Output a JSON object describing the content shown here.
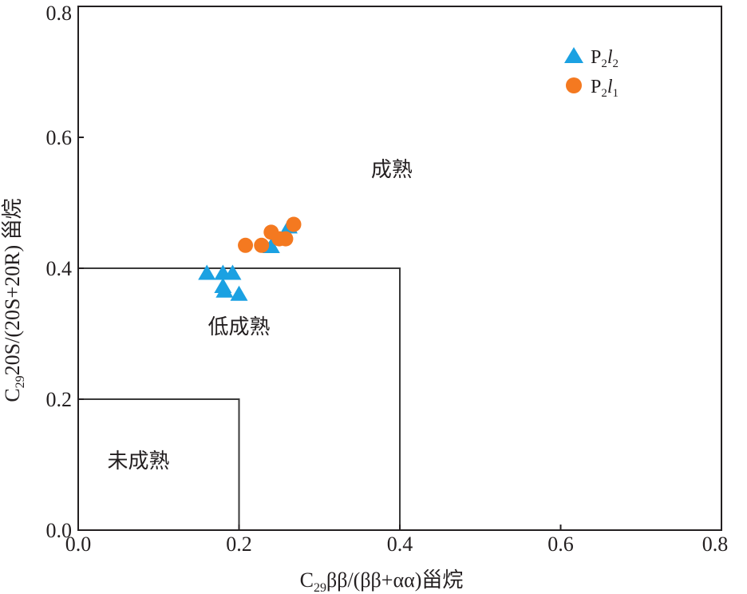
{
  "chart_data": {
    "type": "scatter",
    "xlabel": {
      "c": "C",
      "sub": "29",
      "rest": "ββ/(ββ+αα)甾烷"
    },
    "ylabel": {
      "c": "C",
      "sub": "29",
      "rest": "20S/(20S+20R) 甾烷"
    },
    "xlim": [
      0.0,
      0.8
    ],
    "ylim": [
      0.0,
      0.8
    ],
    "x_ticks": [
      "0.0",
      "0.2",
      "0.4",
      "0.6",
      "0.8"
    ],
    "y_ticks": [
      "0.0",
      "0.2",
      "0.4",
      "0.6",
      "0.8"
    ],
    "grid": false,
    "legend_position": "top-right",
    "regions": [
      {
        "label": "未成熟",
        "x_max": 0.2,
        "y_max": 0.2,
        "label_x": 0.075,
        "label_y": 0.095
      },
      {
        "label": "低成熟",
        "x_max": 0.4,
        "y_max": 0.4,
        "label_x": 0.2,
        "label_y": 0.3
      },
      {
        "label": "成熟",
        "x_max": 0.8,
        "y_max": 0.8,
        "label_x": 0.39,
        "label_y": 0.54
      }
    ],
    "series": [
      {
        "name": {
          "p": "P",
          "sub1": "2",
          "l": "l",
          "sub2": "2"
        },
        "marker": "triangle",
        "color": "#1ba1e2",
        "points": [
          [
            0.16,
            0.392
          ],
          [
            0.18,
            0.392
          ],
          [
            0.192,
            0.392
          ],
          [
            0.18,
            0.372
          ],
          [
            0.182,
            0.365
          ],
          [
            0.2,
            0.36
          ],
          [
            0.24,
            0.433
          ],
          [
            0.262,
            0.463
          ]
        ]
      },
      {
        "name": {
          "p": "P",
          "sub1": "2",
          "l": "l",
          "sub2": "1"
        },
        "marker": "circle",
        "color": "#f47920",
        "points": [
          [
            0.208,
            0.435
          ],
          [
            0.228,
            0.435
          ],
          [
            0.24,
            0.455
          ],
          [
            0.25,
            0.445
          ],
          [
            0.258,
            0.445
          ],
          [
            0.268,
            0.467
          ]
        ]
      }
    ]
  }
}
